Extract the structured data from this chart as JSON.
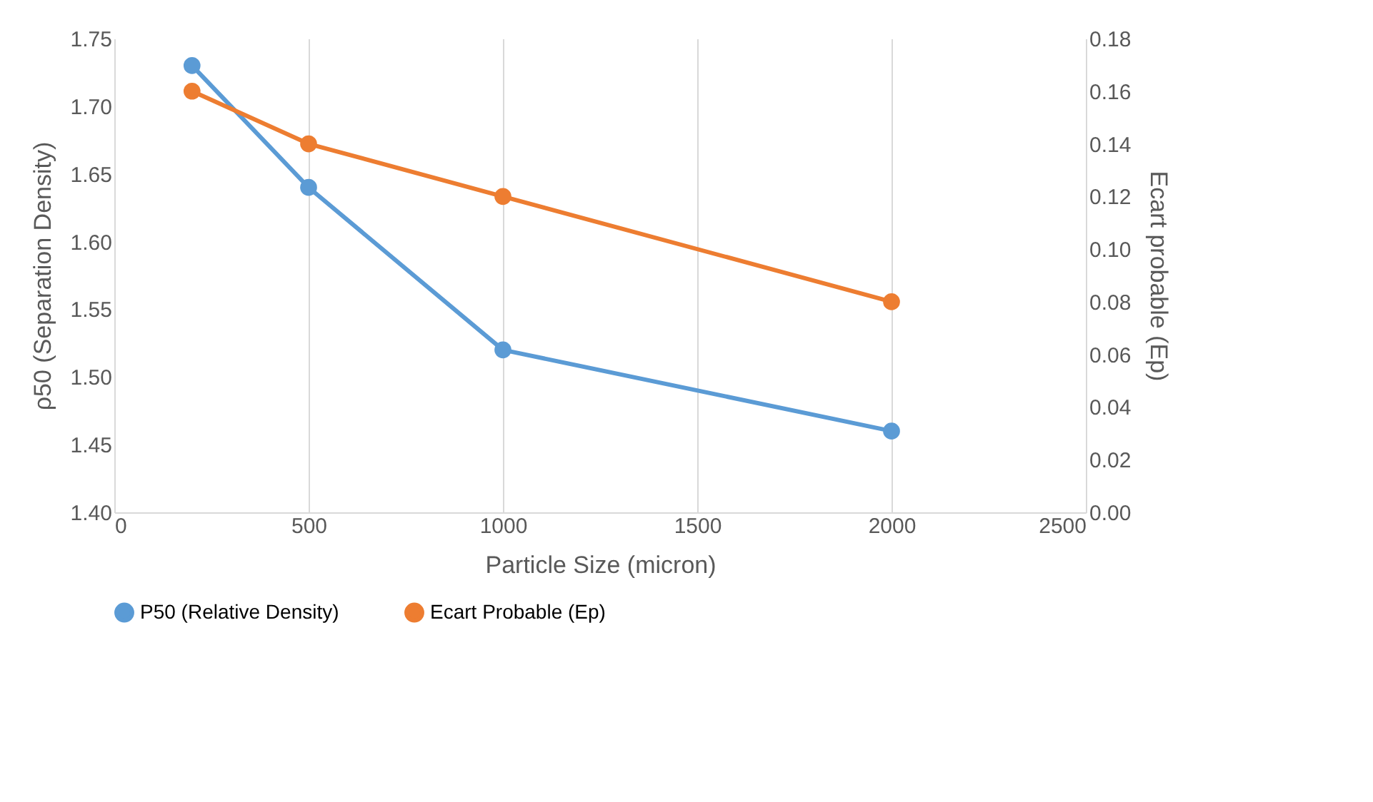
{
  "chart_data": {
    "type": "line",
    "xlabel": "Particle Size (micron)",
    "ylabel": "ρ50 (Separation Density)",
    "y2label": "Ecart probable (Ep)",
    "x": [
      200,
      500,
      1000,
      2000
    ],
    "series": [
      {
        "name": "P50 (Relative Density)",
        "color": "#5b9bd5",
        "values": [
          1.73,
          1.64,
          1.52,
          1.46
        ]
      },
      {
        "name": "Ecart Probable (Ep)",
        "color": "#ed7d31",
        "values": [
          0.16,
          0.14,
          0.12,
          0.08
        ],
        "axis": "y2"
      }
    ],
    "xlim": [
      0,
      2500
    ],
    "xticks": [
      0,
      500,
      1000,
      1500,
      2000,
      2500
    ],
    "ylim": [
      1.4,
      1.75
    ],
    "yticks": [
      {
        "value": 1.4,
        "label": "1.40"
      },
      {
        "value": 1.45,
        "label": "1.45"
      },
      {
        "value": 1.5,
        "label": "1.50"
      },
      {
        "value": 1.55,
        "label": "1.55"
      },
      {
        "value": 1.6,
        "label": "1.60"
      },
      {
        "value": 1.65,
        "label": "1.65"
      },
      {
        "value": 1.7,
        "label": "1.70"
      },
      {
        "value": 1.75,
        "label": "1.75"
      }
    ],
    "y2lim": [
      0,
      0.18
    ],
    "y2ticks": [
      {
        "value": 0,
        "label": "0.00"
      },
      {
        "value": 0.02,
        "label": "0.02"
      },
      {
        "value": 0.04,
        "label": "0.04"
      },
      {
        "value": 0.06,
        "label": "0.06"
      },
      {
        "value": 0.08,
        "label": "0.08"
      },
      {
        "value": 0.1,
        "label": "0.10"
      },
      {
        "value": 0.12,
        "label": "0.12"
      },
      {
        "value": 0.14,
        "label": "0.14"
      },
      {
        "value": 0.16,
        "label": "0.16"
      },
      {
        "value": 0.18,
        "label": "0.18"
      }
    ],
    "grid": "x",
    "legend": "bottom",
    "marker": "circle",
    "line_style": "solid"
  }
}
